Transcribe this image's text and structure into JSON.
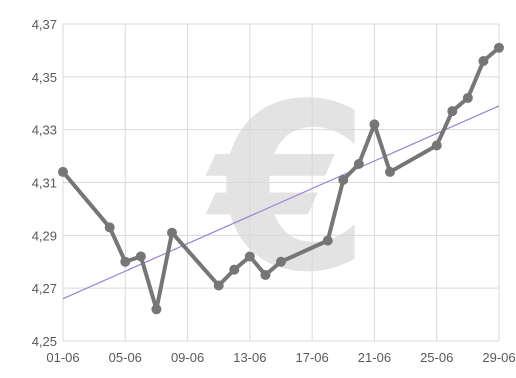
{
  "chart_data": {
    "type": "line",
    "title": "",
    "xlabel": "",
    "ylabel": "",
    "x_tick_labels": [
      "01-06",
      "05-06",
      "09-06",
      "13-06",
      "17-06",
      "21-06",
      "25-06",
      "29-06"
    ],
    "y_tick_labels": [
      "4,25",
      "4,27",
      "4,29",
      "4,31",
      "4,33",
      "4,35",
      "4,37"
    ],
    "xlim": [
      1,
      29
    ],
    "ylim": [
      4.25,
      4.37
    ],
    "grid": true,
    "legend": "none",
    "watermark": "€",
    "series": [
      {
        "color": "#767676",
        "marker": "circle",
        "points": [
          {
            "x": 1,
            "y": 4.314
          },
          {
            "x": 4,
            "y": 4.293
          },
          {
            "x": 5,
            "y": 4.28
          },
          {
            "x": 6,
            "y": 4.282
          },
          {
            "x": 7,
            "y": 4.262
          },
          {
            "x": 8,
            "y": 4.291
          },
          {
            "x": 11,
            "y": 4.271
          },
          {
            "x": 12,
            "y": 4.277
          },
          {
            "x": 13,
            "y": 4.282
          },
          {
            "x": 14,
            "y": 4.275
          },
          {
            "x": 15,
            "y": 4.28
          },
          {
            "x": 18,
            "y": 4.288
          },
          {
            "x": 19,
            "y": 4.311
          },
          {
            "x": 20,
            "y": 4.317
          },
          {
            "x": 21,
            "y": 4.332
          },
          {
            "x": 22,
            "y": 4.314
          },
          {
            "x": 25,
            "y": 4.324
          },
          {
            "x": 26,
            "y": 4.337
          },
          {
            "x": 27,
            "y": 4.342
          },
          {
            "x": 28,
            "y": 4.356
          },
          {
            "x": 29,
            "y": 4.361
          }
        ]
      }
    ],
    "trendline": {
      "color": "#9b82d3",
      "from": {
        "x": 1,
        "y": 4.266
      },
      "to": {
        "x": 29,
        "y": 4.339
      }
    }
  }
}
